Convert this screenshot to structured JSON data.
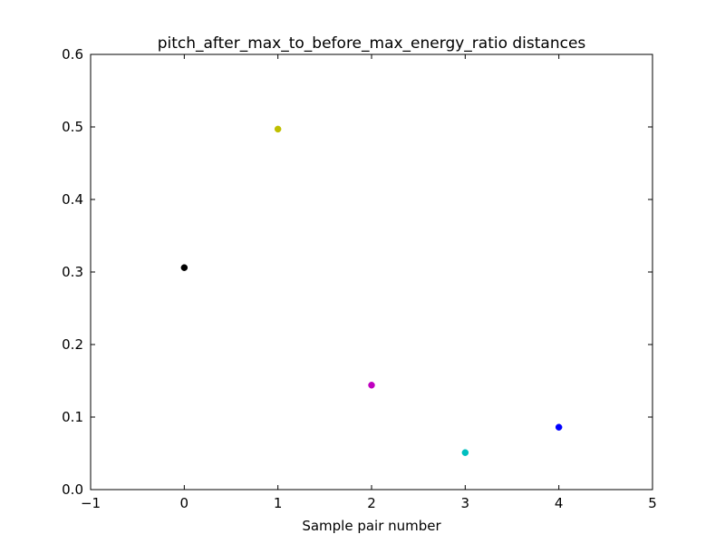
{
  "chart_data": {
    "type": "scatter",
    "title": "pitch_after_max_to_before_max_energy_ratio distances",
    "xlabel": "Sample pair number",
    "ylabel": "",
    "xlim": [
      -1,
      5
    ],
    "ylim": [
      0,
      0.6
    ],
    "x_ticks": [
      -1,
      0,
      1,
      2,
      3,
      4,
      5
    ],
    "x_tick_labels": [
      "−1",
      "0",
      "1",
      "2",
      "3",
      "4",
      "5"
    ],
    "y_ticks": [
      0.0,
      0.1,
      0.2,
      0.3,
      0.4,
      0.5,
      0.6
    ],
    "y_tick_labels": [
      "0.0",
      "0.1",
      "0.2",
      "0.3",
      "0.4",
      "0.5",
      "0.6"
    ],
    "grid": false,
    "points": [
      {
        "x": 0,
        "y": 0.306,
        "color": "#000000"
      },
      {
        "x": 1,
        "y": 0.497,
        "color": "#bfbf00"
      },
      {
        "x": 2,
        "y": 0.144,
        "color": "#bf00bf"
      },
      {
        "x": 3,
        "y": 0.051,
        "color": "#00bfbf"
      },
      {
        "x": 4,
        "y": 0.086,
        "color": "#0000ff"
      }
    ]
  }
}
